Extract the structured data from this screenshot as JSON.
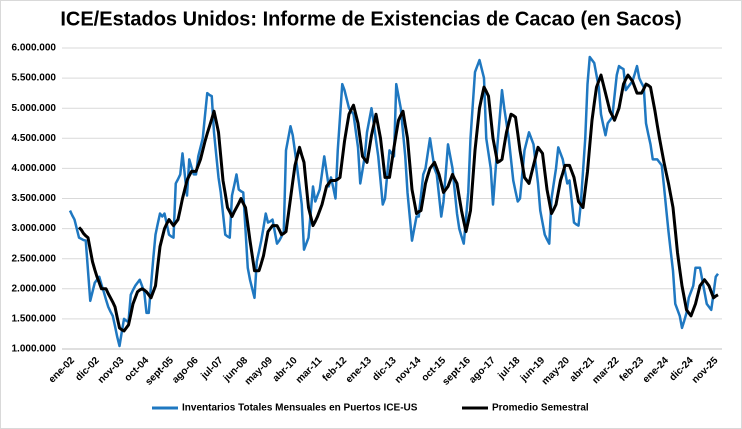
{
  "chart_data": {
    "type": "line",
    "title": "ICE/Estados Unidos: Informe de Existencias de Cacao (en Sacos)",
    "categories": [
      "ene-02",
      null,
      null,
      null,
      null,
      null,
      null,
      null,
      null,
      null,
      null,
      "dic-02",
      null,
      null,
      null,
      null,
      null,
      null,
      null,
      null,
      null,
      null,
      "nov-03",
      null,
      null,
      null,
      null,
      null,
      null,
      null,
      null,
      null,
      null,
      "oct-04",
      null,
      null,
      null,
      null,
      null,
      null,
      null,
      null,
      null,
      null,
      "sept-05",
      null,
      null,
      null,
      null,
      null,
      null,
      null,
      null,
      null,
      null,
      "ago-06",
      null,
      null,
      null,
      null,
      null,
      null,
      null,
      null,
      null,
      null,
      "jul-07",
      null,
      null,
      null,
      null,
      null,
      null,
      null,
      null,
      null,
      null,
      "jun-08",
      null,
      null,
      null,
      null,
      null,
      null,
      null,
      null,
      null,
      null,
      "may-09",
      null,
      null,
      null,
      null,
      null,
      null,
      null,
      null,
      null,
      null,
      "abr-10",
      null,
      null,
      null,
      null,
      null,
      null,
      null,
      null,
      null,
      null,
      "mar-11",
      null,
      null,
      null,
      null,
      null,
      null,
      null,
      null,
      null,
      null,
      "feb-12",
      null,
      null,
      null,
      null,
      null,
      null,
      null,
      null,
      null,
      null,
      "ene-13",
      null,
      null,
      null,
      null,
      null,
      null,
      null,
      null,
      null,
      null,
      "dic-13",
      null,
      null,
      null,
      null,
      null,
      null,
      null,
      null,
      null,
      null,
      "nov-14",
      null,
      null,
      null,
      null,
      null,
      null,
      null,
      null,
      null,
      null,
      "oct-15",
      null,
      null,
      null,
      null,
      null,
      null,
      null,
      null,
      null,
      null,
      "sept-16",
      null,
      null,
      null,
      null,
      null,
      null,
      null,
      null,
      null,
      null,
      "ago-17",
      null,
      null,
      null,
      null,
      null,
      null,
      null,
      null,
      null,
      null,
      "jul-18",
      null,
      null,
      null,
      null,
      null,
      null,
      null,
      null,
      null,
      null,
      "jun-19",
      null,
      null,
      null,
      null,
      null,
      null,
      null,
      null,
      null,
      null,
      "may-20",
      null,
      null,
      null,
      null,
      null,
      null,
      null,
      null,
      null,
      null,
      "abr-21",
      null,
      null,
      null,
      null,
      null,
      null,
      null,
      null,
      null,
      null,
      "mar-22",
      null,
      null,
      null,
      null,
      null,
      null,
      null,
      null,
      null,
      null,
      "feb-23",
      null,
      null,
      null,
      null,
      null,
      null,
      null,
      null,
      null,
      null,
      "ene-24",
      null,
      null,
      null,
      null,
      null,
      null,
      null,
      null,
      null,
      null,
      "dic-24",
      null,
      null,
      null,
      null,
      null,
      null,
      null,
      null,
      null,
      null,
      "nov-25",
      null,
      null
    ],
    "series": [
      {
        "name": "Inventarios Totales Mensuales en Puertos ICE-US",
        "color": "#1f78c1",
        "values": [
          3300000,
          3220000,
          3150000,
          3000000,
          2850000,
          2830000,
          2810000,
          2800000,
          2300000,
          1800000,
          1950000,
          2100000,
          2150000,
          2200000,
          2070000,
          1950000,
          1820000,
          1700000,
          1620000,
          1550000,
          1380000,
          1200000,
          1050000,
          1280000,
          1500000,
          1470000,
          1450000,
          1900000,
          1980000,
          2050000,
          2100000,
          2150000,
          2050000,
          1950000,
          1600000,
          1600000,
          2050000,
          2500000,
          2900000,
          3080000,
          3250000,
          3200000,
          3250000,
          3080000,
          2900000,
          2870000,
          2850000,
          3750000,
          3820000,
          3900000,
          4250000,
          3900000,
          3550000,
          4150000,
          4020000,
          3900000,
          3900000,
          4200000,
          4350000,
          4500000,
          4880000,
          5250000,
          5220000,
          5200000,
          4600000,
          4220000,
          3850000,
          3600000,
          3250000,
          2900000,
          2870000,
          2850000,
          3550000,
          3720000,
          3900000,
          3650000,
          3620000,
          3600000,
          2980000,
          2350000,
          2150000,
          2000000,
          1850000,
          2450000,
          2620000,
          2800000,
          3020000,
          3250000,
          3100000,
          3120000,
          3150000,
          2950000,
          2750000,
          2800000,
          2870000,
          2950000,
          4300000,
          4500000,
          4700000,
          4550000,
          4280000,
          4000000,
          3700000,
          3400000,
          2650000,
          2750000,
          2850000,
          3270000,
          3700000,
          3450000,
          3550000,
          3650000,
          3920000,
          4200000,
          3950000,
          3700000,
          3850000,
          3680000,
          3500000,
          4300000,
          4850000,
          5400000,
          5300000,
          5150000,
          5000000,
          4950000,
          4900000,
          4620000,
          4350000,
          3750000,
          3970000,
          4200000,
          4600000,
          4800000,
          5000000,
          4750000,
          4470000,
          4200000,
          3800000,
          3400000,
          3500000,
          3900000,
          4300000,
          4250000,
          4200000,
          5400000,
          5200000,
          5000000,
          4600000,
          4200000,
          3600000,
          3200000,
          2800000,
          3000000,
          3200000,
          3200000,
          3550000,
          3900000,
          4000000,
          4250000,
          4500000,
          4250000,
          4000000,
          3900000,
          3550000,
          3200000,
          3450000,
          3920000,
          4400000,
          4200000,
          4000000,
          3620000,
          3250000,
          3000000,
          2870000,
          2750000,
          3170000,
          3600000,
          4500000,
          5050000,
          5600000,
          5700000,
          5800000,
          5650000,
          5500000,
          4500000,
          4250000,
          4000000,
          3400000,
          3900000,
          4400000,
          4850000,
          5300000,
          5000000,
          4750000,
          4500000,
          4150000,
          3800000,
          3620000,
          3450000,
          3500000,
          3900000,
          4300000,
          4450000,
          4600000,
          4500000,
          4400000,
          4070000,
          3750000,
          3300000,
          3100000,
          2900000,
          2820000,
          2750000,
          3500000,
          3750000,
          4000000,
          4350000,
          4250000,
          4150000,
          3950000,
          3750000,
          3800000,
          3450000,
          3100000,
          3070000,
          3050000,
          3400000,
          3950000,
          4500000,
          5400000,
          5850000,
          5800000,
          5750000,
          5550000,
          5350000,
          4900000,
          4720000,
          4550000,
          4750000,
          4800000,
          4850000,
          5200000,
          5550000,
          5700000,
          5670000,
          5650000,
          5300000,
          5350000,
          5400000,
          5450000,
          5570000,
          5700000,
          5500000,
          5420000,
          5350000,
          4750000,
          4570000,
          4400000,
          4150000,
          4150000,
          4150000,
          4100000,
          4050000,
          3700000,
          3320000,
          2950000,
          2620000,
          2300000,
          1750000,
          1650000,
          1550000,
          1350000,
          1470000,
          1600000,
          1850000,
          1950000,
          2050000,
          2350000,
          2350000,
          2350000,
          2150000,
          1950000,
          1750000,
          1700000,
          1650000,
          1920000,
          2200000,
          2250000
        ]
      },
      {
        "name": "Promedio Semestral",
        "color": "#000000",
        "values": [
          null,
          null,
          null,
          null,
          3020000,
          2980000,
          2920000,
          2880000,
          2850000,
          2650000,
          2450000,
          2320000,
          2200000,
          2100000,
          2000000,
          2000000,
          2000000,
          1920000,
          1850000,
          1780000,
          1700000,
          1520000,
          1350000,
          1320000,
          1300000,
          1350000,
          1400000,
          1570000,
          1750000,
          1850000,
          1950000,
          1980000,
          2000000,
          1980000,
          1950000,
          1900000,
          1850000,
          1950000,
          2050000,
          2380000,
          2700000,
          2850000,
          3000000,
          3080000,
          3150000,
          3100000,
          3050000,
          3100000,
          3150000,
          3320000,
          3500000,
          3650000,
          3800000,
          3880000,
          3950000,
          3950000,
          3950000,
          4050000,
          4150000,
          4300000,
          4450000,
          4580000,
          4700000,
          4820000,
          4950000,
          4780000,
          4600000,
          4200000,
          3800000,
          3580000,
          3350000,
          3280000,
          3200000,
          3280000,
          3350000,
          3420000,
          3500000,
          3420000,
          3350000,
          3080000,
          2800000,
          2550000,
          2300000,
          2300000,
          2300000,
          2420000,
          2550000,
          2750000,
          2950000,
          3000000,
          3050000,
          3050000,
          3050000,
          2980000,
          2900000,
          2920000,
          2950000,
          3220000,
          3500000,
          3780000,
          4050000,
          4200000,
          4350000,
          4220000,
          4100000,
          3720000,
          3350000,
          3200000,
          3050000,
          3120000,
          3200000,
          3300000,
          3400000,
          3550000,
          3700000,
          3750000,
          3800000,
          3800000,
          3800000,
          3820000,
          3850000,
          4150000,
          4450000,
          4680000,
          4900000,
          4980000,
          5050000,
          4900000,
          4750000,
          4480000,
          4200000,
          4150000,
          4100000,
          4320000,
          4550000,
          4720000,
          4900000,
          4700000,
          4500000,
          4180000,
          3850000,
          3850000,
          3850000,
          4100000,
          4350000,
          4580000,
          4800000,
          4880000,
          4950000,
          4720000,
          4500000,
          4080000,
          3650000,
          3450000,
          3250000,
          3280000,
          3300000,
          3520000,
          3750000,
          3880000,
          4000000,
          4050000,
          4100000,
          4000000,
          3900000,
          3750000,
          3600000,
          3650000,
          3700000,
          3800000,
          3900000,
          3820000,
          3750000,
          3520000,
          3300000,
          3120000,
          2950000,
          3120000,
          3300000,
          3800000,
          4300000,
          4650000,
          5000000,
          5180000,
          5350000,
          5280000,
          5200000,
          4850000,
          4500000,
          4300000,
          4100000,
          4120000,
          4150000,
          4380000,
          4600000,
          4750000,
          4900000,
          4880000,
          4850000,
          4580000,
          4300000,
          4080000,
          3850000,
          3800000,
          3750000,
          3900000,
          4050000,
          4200000,
          4350000,
          4300000,
          4250000,
          3950000,
          3650000,
          3450000,
          3250000,
          3320000,
          3400000,
          3600000,
          3800000,
          3920000,
          4050000,
          4050000,
          4050000,
          3950000,
          3850000,
          3650000,
          3450000,
          3400000,
          3350000,
          3650000,
          3950000,
          4380000,
          4800000,
          5080000,
          5350000,
          5450000,
          5550000,
          5400000,
          5250000,
          5100000,
          4950000,
          4880000,
          4800000,
          4900000,
          5000000,
          5200000,
          5400000,
          5480000,
          5550000,
          5500000,
          5450000,
          5350000,
          5250000,
          5250000,
          5250000,
          5320000,
          5400000,
          5380000,
          5350000,
          5150000,
          4950000,
          4720000,
          4500000,
          4300000,
          4100000,
          3920000,
          3750000,
          3550000,
          3350000,
          2980000,
          2600000,
          2320000,
          2050000,
          1850000,
          1650000,
          1600000,
          1550000,
          1650000,
          1750000,
          1900000,
          2050000,
          2100000,
          2150000,
          2100000,
          2050000,
          1950000,
          1850000,
          1880000,
          1900000
        ]
      }
    ],
    "ylim": [
      1000000,
      6000000
    ],
    "yticks": [
      {
        "value": 1000000,
        "label": "1.000.000"
      },
      {
        "value": 1500000,
        "label": "1.500.000"
      },
      {
        "value": 2000000,
        "label": "2.000.000"
      },
      {
        "value": 2500000,
        "label": "2.500.000"
      },
      {
        "value": 3000000,
        "label": "3.000.000"
      },
      {
        "value": 3500000,
        "label": "3.500.000"
      },
      {
        "value": 4000000,
        "label": "4.000.000"
      },
      {
        "value": 4500000,
        "label": "4.500.000"
      },
      {
        "value": 5000000,
        "label": "5.000.000"
      },
      {
        "value": 5500000,
        "label": "5.500.000"
      },
      {
        "value": 6000000,
        "label": "6.000.000"
      }
    ],
    "grid": true,
    "legend": "bottom"
  }
}
